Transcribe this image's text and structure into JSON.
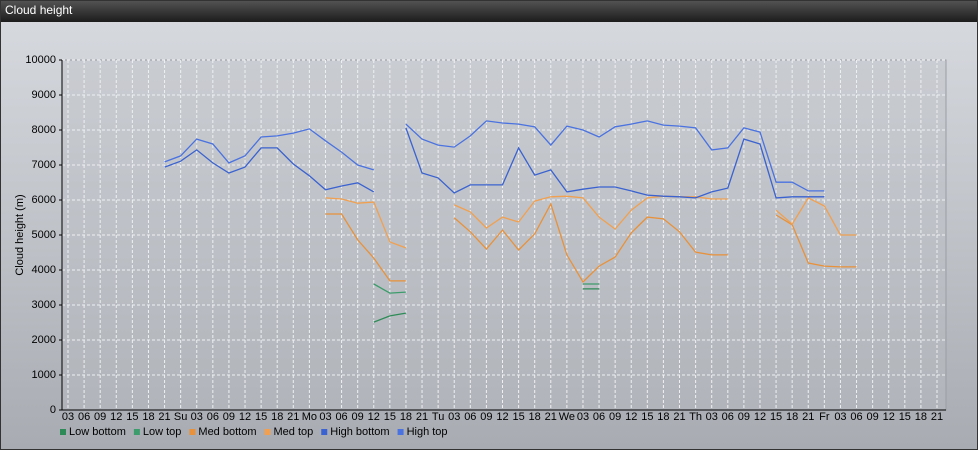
{
  "chart_data": {
    "type": "line",
    "title": "Cloud height",
    "y_label": "Cloud height (m)",
    "categories": [
      "03",
      "06",
      "09",
      "12",
      "15",
      "18",
      "21",
      "Su",
      "03",
      "06",
      "09",
      "12",
      "15",
      "18",
      "21",
      "Mo",
      "03",
      "06",
      "09",
      "12",
      "15",
      "18",
      "21",
      "Tu",
      "03",
      "06",
      "09",
      "12",
      "15",
      "18",
      "21",
      "We",
      "03",
      "06",
      "09",
      "12",
      "15",
      "18",
      "21",
      "Th",
      "03",
      "06",
      "09",
      "12",
      "15",
      "18",
      "21",
      "Fr",
      "03",
      "06",
      "09",
      "12",
      "15",
      "18",
      "21"
    ],
    "ylim": [
      0,
      10000
    ],
    "yticks": [
      0,
      1000,
      2000,
      3000,
      4000,
      5000,
      6000,
      7000,
      8000,
      9000,
      10000
    ],
    "grid": true,
    "legend": "bottom-left",
    "series": [
      {
        "name": "Low bottom",
        "color": "#2e8b57",
        "values": [
          null,
          null,
          null,
          null,
          null,
          null,
          null,
          null,
          null,
          null,
          null,
          null,
          null,
          null,
          null,
          null,
          null,
          null,
          null,
          2510,
          2690,
          2770,
          null,
          null,
          null,
          null,
          null,
          null,
          null,
          null,
          null,
          null,
          3460,
          3460,
          null,
          null,
          null,
          null,
          null,
          null,
          null,
          null,
          null,
          null,
          null,
          null,
          null,
          null,
          null,
          null,
          null,
          null,
          null,
          null,
          null
        ]
      },
      {
        "name": "Low top",
        "color": "#3c9c6c",
        "values": [
          null,
          null,
          null,
          null,
          null,
          null,
          null,
          null,
          null,
          null,
          null,
          null,
          null,
          null,
          null,
          null,
          null,
          null,
          null,
          3600,
          3340,
          3370,
          null,
          null,
          null,
          null,
          null,
          null,
          null,
          null,
          null,
          null,
          3600,
          3600,
          null,
          null,
          null,
          null,
          null,
          null,
          null,
          null,
          null,
          null,
          null,
          null,
          null,
          null,
          null,
          null,
          null,
          null,
          null,
          null,
          null
        ]
      },
      {
        "name": "Med bottom",
        "color": "#e8913a",
        "values": [
          null,
          null,
          null,
          null,
          null,
          null,
          null,
          null,
          null,
          null,
          null,
          null,
          null,
          null,
          null,
          null,
          5600,
          5600,
          4860,
          4340,
          3690,
          3690,
          null,
          null,
          5490,
          5090,
          4600,
          5140,
          4570,
          5030,
          5890,
          4430,
          3660,
          4110,
          4370,
          5060,
          5510,
          5460,
          5090,
          4510,
          4430,
          4430,
          null,
          null,
          5570,
          5290,
          4200,
          4110,
          4090,
          4090,
          null,
          null,
          null,
          null,
          null
        ]
      },
      {
        "name": "Med top",
        "color": "#f0a050",
        "values": [
          null,
          null,
          null,
          null,
          null,
          null,
          null,
          null,
          null,
          null,
          null,
          null,
          null,
          null,
          null,
          null,
          6060,
          6030,
          5910,
          5940,
          4800,
          4630,
          null,
          null,
          5860,
          5660,
          5200,
          5510,
          5370,
          5970,
          6090,
          6110,
          6060,
          5510,
          5170,
          5710,
          6060,
          6110,
          6090,
          6090,
          6030,
          6030,
          null,
          null,
          5710,
          5310,
          6060,
          5830,
          5000,
          5000,
          null,
          null,
          null,
          null,
          null
        ]
      },
      {
        "name": "High bottom",
        "color": "#3a62d0",
        "values": [
          null,
          null,
          null,
          null,
          null,
          null,
          6940,
          7110,
          7430,
          7060,
          6770,
          6940,
          7490,
          7490,
          7030,
          6690,
          6290,
          6400,
          6490,
          6230,
          null,
          8060,
          6770,
          6630,
          6200,
          6430,
          6430,
          6430,
          7490,
          6710,
          6860,
          6230,
          6310,
          6370,
          6370,
          6260,
          6140,
          6110,
          6090,
          6060,
          6230,
          6340,
          7740,
          7600,
          6060,
          6090,
          6090,
          6090,
          null,
          null,
          null,
          null,
          null,
          null,
          null
        ]
      },
      {
        "name": "High top",
        "color": "#4a72e0",
        "values": [
          null,
          null,
          null,
          null,
          null,
          null,
          7090,
          7260,
          7740,
          7600,
          7060,
          7260,
          7800,
          7830,
          7910,
          8030,
          7690,
          7370,
          7000,
          6860,
          null,
          8170,
          7740,
          7570,
          7510,
          7830,
          8260,
          8200,
          8170,
          8090,
          7570,
          8110,
          8000,
          7800,
          8090,
          8170,
          8260,
          8140,
          8110,
          8060,
          7430,
          7490,
          8060,
          7940,
          6510,
          6510,
          6260,
          6260,
          null,
          null,
          null,
          null,
          null,
          null,
          null
        ]
      }
    ]
  }
}
